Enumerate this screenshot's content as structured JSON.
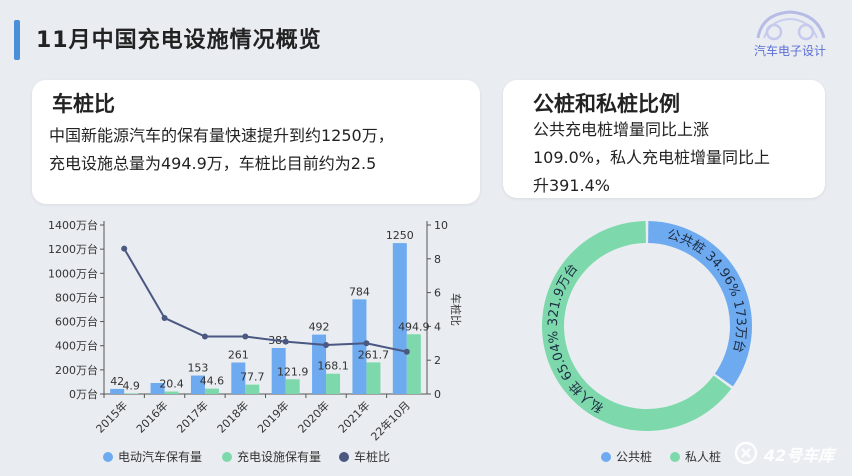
{
  "page": {
    "title": "11月中国充电设施情况概览"
  },
  "logo": {
    "text": "汽车电子设计"
  },
  "watermark": {
    "text": "42号车库"
  },
  "left_card": {
    "title": "车桩比",
    "line1": "中国新能源汽车的保有量快速提升到约1250万，",
    "line2": "充电设施总量为494.9万，车桩比目前约为2.5"
  },
  "right_card": {
    "title": "公桩和私桩比例",
    "line1": "公共充电桩增量同比上涨",
    "line2": "109.0%，私人充电桩增量同比上",
    "line3": "升391.4%"
  },
  "colors": {
    "ev": "#6eaaf0",
    "charger": "#7dd9ab",
    "ratio": "#4a5882",
    "public": "#6eaaf0",
    "private": "#7dd9ab"
  },
  "chart_data": [
    {
      "type": "bar",
      "categories": [
        "2015年",
        "2016年",
        "2017年",
        "2018年",
        "2019年",
        "2020年",
        "2021年",
        "22年10月"
      ],
      "series": [
        {
          "name": "电动汽车保有量",
          "values": [
            42,
            91,
            153,
            261,
            381,
            492,
            784,
            1250
          ],
          "labels": [
            "42",
            "",
            "153",
            "261",
            "381",
            "492",
            "784",
            "1250"
          ]
        },
        {
          "name": "充电设施保有量",
          "values": [
            4.9,
            20.4,
            44.6,
            77.7,
            121.9,
            168.1,
            261.7,
            494.9
          ],
          "labels": [
            "4.9",
            "20.4",
            "44.6",
            "77.7",
            "121.9",
            "168.1",
            "261.7",
            "494.9"
          ]
        },
        {
          "name": "车桩比",
          "type": "line",
          "axis": "right",
          "values": [
            8.6,
            4.5,
            3.4,
            3.4,
            3.1,
            2.9,
            3.0,
            2.5
          ]
        }
      ],
      "yticks": [
        "0万台",
        "200万台",
        "400万台",
        "600万台",
        "800万台",
        "1000万台",
        "1200万台",
        "1400万台"
      ],
      "ylim": [
        0,
        1400
      ],
      "y2label": "车桩比",
      "y2ticks": [
        "0",
        "2",
        "4",
        "6",
        "8",
        "10"
      ],
      "y2lim": [
        0,
        10
      ],
      "legend_position": "bottom"
    },
    {
      "type": "pie",
      "donut": true,
      "slices": [
        {
          "name": "公共桩",
          "percent": "34.96%",
          "value": "173万台",
          "fraction": 0.3496
        },
        {
          "name": "私人桩",
          "percent": "65.04%",
          "value": "321.9万台",
          "fraction": 0.6504
        }
      ],
      "legend_position": "bottom"
    }
  ]
}
